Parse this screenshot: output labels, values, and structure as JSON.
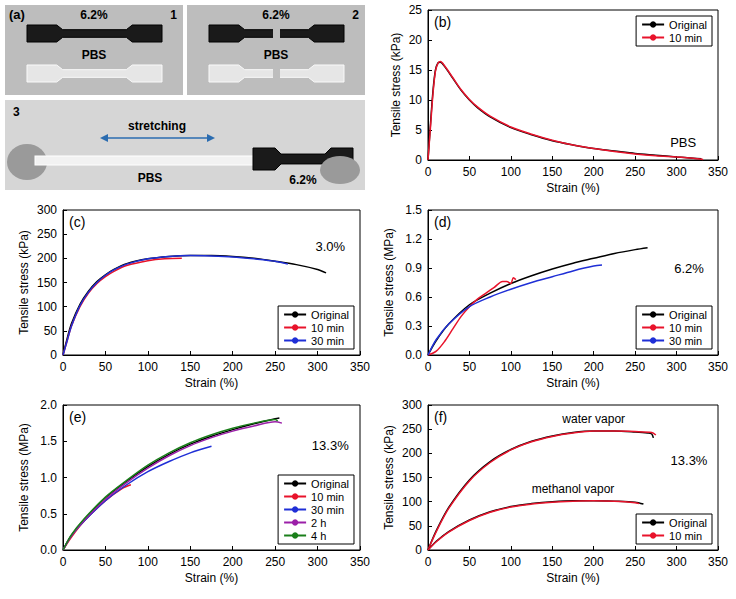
{
  "photo": {
    "label": "(a)",
    "frames": [
      {
        "number": "1",
        "sample": "6.2%",
        "reference": "PBS"
      },
      {
        "number": "2",
        "sample": "6.2%",
        "reference": "PBS"
      },
      {
        "number": "3",
        "sample": "6.2%",
        "reference": "PBS",
        "action": "stretching"
      }
    ]
  },
  "chart_data": [
    {
      "type": "line",
      "panel": "(b)",
      "annotation": "PBS",
      "x_label": "Strain (%)",
      "y_label": "Tensile stress (kPa)",
      "xlim": [
        0,
        350
      ],
      "xticks": [
        0,
        50,
        100,
        150,
        200,
        250,
        300,
        350
      ],
      "ylim": [
        0,
        25
      ],
      "yticks": [
        0,
        5,
        10,
        15,
        20,
        25
      ],
      "legend": "upper right",
      "series": [
        {
          "name": "Original",
          "color": "#000000",
          "x": [
            0,
            3,
            6,
            9,
            12,
            15,
            20,
            30,
            40,
            50,
            60,
            75,
            100,
            125,
            150,
            175,
            200,
            225,
            250,
            275,
            300,
            320,
            330
          ],
          "values": [
            0,
            6,
            11.5,
            15,
            16.2,
            16.3,
            15.6,
            13.6,
            11.6,
            10.0,
            8.7,
            7.2,
            5.4,
            4.2,
            3.2,
            2.5,
            1.9,
            1.5,
            1.1,
            0.8,
            0.5,
            0.3,
            0.2
          ]
        },
        {
          "name": "10 min",
          "color": "#e8132b",
          "x": [
            0,
            3,
            6,
            9,
            12,
            15,
            20,
            30,
            40,
            50,
            60,
            75,
            100,
            125,
            150,
            175,
            200,
            225,
            250,
            275,
            300,
            320,
            332
          ],
          "values": [
            0,
            5.5,
            11,
            14.8,
            16.1,
            16.4,
            15.7,
            13.7,
            11.7,
            10.1,
            8.8,
            7.3,
            5.5,
            4.3,
            3.3,
            2.5,
            1.9,
            1.4,
            1.0,
            0.7,
            0.5,
            0.3,
            0.1
          ]
        }
      ]
    },
    {
      "type": "line",
      "panel": "(c)",
      "annotation": "3.0%",
      "x_label": "Strain (%)",
      "y_label": "Tensile stress (kPa)",
      "xlim": [
        0,
        350
      ],
      "xticks": [
        0,
        50,
        100,
        150,
        200,
        250,
        300,
        350
      ],
      "ylim": [
        0,
        300
      ],
      "yticks": [
        0,
        50,
        100,
        150,
        200,
        250,
        300
      ],
      "legend": "lower right",
      "series": [
        {
          "name": "Original",
          "color": "#000000",
          "x": [
            0,
            5,
            10,
            20,
            30,
            40,
            50,
            60,
            75,
            100,
            125,
            150,
            175,
            200,
            225,
            250,
            275,
            300,
            310
          ],
          "values": [
            0,
            35,
            65,
            105,
            132,
            152,
            166,
            177,
            189,
            199,
            204,
            206,
            206,
            204,
            200,
            194,
            187,
            177,
            170
          ]
        },
        {
          "name": "10 min",
          "color": "#e8132b",
          "x": [
            0,
            5,
            10,
            20,
            30,
            40,
            50,
            60,
            75,
            100,
            120,
            140
          ],
          "values": [
            0,
            30,
            60,
            100,
            128,
            148,
            162,
            173,
            185,
            195,
            199,
            200
          ]
        },
        {
          "name": "30 min",
          "color": "#1f2fd6",
          "x": [
            0,
            5,
            10,
            20,
            30,
            40,
            50,
            60,
            75,
            100,
            125,
            150,
            175,
            200,
            225,
            250,
            265
          ],
          "values": [
            0,
            30,
            60,
            102,
            130,
            150,
            165,
            176,
            188,
            199,
            204,
            206,
            205,
            203,
            199,
            194,
            188
          ]
        }
      ]
    },
    {
      "type": "line",
      "panel": "(d)",
      "annotation": "6.2%",
      "x_label": "Strain (%)",
      "y_label": "Tensile stress (MPa)",
      "xlim": [
        0,
        350
      ],
      "xticks": [
        0,
        50,
        100,
        150,
        200,
        250,
        300,
        350
      ],
      "ylim": [
        0,
        1.5
      ],
      "yticks": [
        {
          "value": 0,
          "label": "0.0"
        },
        0.3,
        0.6,
        0.9,
        1.2,
        1.5
      ],
      "legend": "lower right",
      "series": [
        {
          "name": "Original",
          "color": "#000000",
          "x": [
            0,
            10,
            25,
            50,
            75,
            100,
            125,
            150,
            175,
            200,
            225,
            250,
            265
          ],
          "values": [
            0,
            0.15,
            0.32,
            0.52,
            0.64,
            0.74,
            0.82,
            0.89,
            0.95,
            1.0,
            1.05,
            1.09,
            1.11
          ]
        },
        {
          "name": "10 min",
          "color": "#e8132b",
          "x": [
            0,
            10,
            20,
            30,
            40,
            50,
            60,
            70,
            80,
            90,
            95,
            100,
            103,
            106
          ],
          "values": [
            0,
            0.04,
            0.14,
            0.27,
            0.4,
            0.5,
            0.58,
            0.64,
            0.7,
            0.76,
            0.76,
            0.74,
            0.8,
            0.78
          ]
        },
        {
          "name": "30 min",
          "color": "#1f2fd6",
          "x": [
            0,
            10,
            25,
            50,
            75,
            100,
            125,
            150,
            175,
            200,
            210
          ],
          "values": [
            0,
            0.16,
            0.32,
            0.5,
            0.6,
            0.68,
            0.75,
            0.81,
            0.87,
            0.92,
            0.93
          ]
        }
      ]
    },
    {
      "type": "line",
      "panel": "(e)",
      "annotation": "13.3%",
      "x_label": "Strain (%)",
      "y_label": "Tensile stress (MPa)",
      "xlim": [
        0,
        350
      ],
      "xticks": [
        0,
        50,
        100,
        150,
        200,
        250,
        300,
        350
      ],
      "ylim": [
        0,
        2
      ],
      "yticks": [
        {
          "value": 0,
          "label": "0.0"
        },
        0.5,
        {
          "value": 1,
          "label": "1.0"
        },
        1.5,
        {
          "value": 2,
          "label": "2.0"
        }
      ],
      "legend": "lower right",
      "series": [
        {
          "name": "Original",
          "color": "#000000",
          "x": [
            0,
            10,
            25,
            50,
            75,
            100,
            125,
            150,
            175,
            200,
            225,
            250,
            255
          ],
          "values": [
            0,
            0.2,
            0.42,
            0.72,
            0.95,
            1.15,
            1.32,
            1.46,
            1.57,
            1.66,
            1.74,
            1.81,
            1.82
          ]
        },
        {
          "name": "10 min",
          "color": "#e8132b",
          "x": [
            0,
            10,
            25,
            50,
            70,
            80
          ],
          "values": [
            0,
            0.18,
            0.4,
            0.68,
            0.85,
            0.9
          ]
        },
        {
          "name": "30 min",
          "color": "#1f2fd6",
          "x": [
            0,
            10,
            25,
            50,
            75,
            100,
            125,
            150,
            175
          ],
          "values": [
            0,
            0.2,
            0.4,
            0.68,
            0.9,
            1.08,
            1.22,
            1.34,
            1.43
          ]
        },
        {
          "name": "2 h",
          "color": "#9b1fa8",
          "x": [
            0,
            10,
            25,
            50,
            75,
            100,
            125,
            150,
            175,
            200,
            225,
            250,
            258
          ],
          "values": [
            0,
            0.2,
            0.41,
            0.7,
            0.93,
            1.13,
            1.3,
            1.44,
            1.55,
            1.64,
            1.71,
            1.77,
            1.75
          ]
        },
        {
          "name": "4 h",
          "color": "#1a7f1a",
          "x": [
            0,
            10,
            25,
            50,
            75,
            100,
            125,
            150,
            175,
            200,
            225,
            250,
            253
          ],
          "values": [
            0,
            0.21,
            0.43,
            0.73,
            0.96,
            1.17,
            1.34,
            1.48,
            1.59,
            1.68,
            1.75,
            1.8,
            1.78
          ]
        }
      ]
    },
    {
      "type": "line",
      "panel": "(f)",
      "annotation": "13.3%",
      "x_label": "Strain (%)",
      "y_label": "Tensile stress (kPa)",
      "xlim": [
        0,
        350
      ],
      "xticks": [
        0,
        50,
        100,
        150,
        200,
        250,
        300,
        350
      ],
      "ylim": [
        0,
        300
      ],
      "yticks": [
        0,
        50,
        100,
        150,
        200,
        250,
        300
      ],
      "legend": "lower right",
      "series": [
        {
          "name": "Original",
          "group": "water vapor",
          "color": "#000000",
          "x": [
            0,
            10,
            25,
            50,
            75,
            100,
            125,
            150,
            175,
            200,
            225,
            250,
            265,
            270,
            272
          ],
          "values": [
            0,
            40,
            88,
            145,
            183,
            208,
            225,
            236,
            243,
            246,
            246,
            244,
            242,
            240,
            232
          ]
        },
        {
          "name": "10 min",
          "group": "water vapor",
          "color": "#e8132b",
          "x": [
            0,
            10,
            25,
            50,
            75,
            100,
            125,
            150,
            175,
            200,
            225,
            250,
            270,
            275
          ],
          "values": [
            0,
            38,
            86,
            143,
            181,
            207,
            224,
            235,
            242,
            246,
            246,
            245,
            243,
            238
          ]
        },
        {
          "name": "Original",
          "group": "methanol vapor",
          "color": "#000000",
          "x": [
            0,
            10,
            25,
            50,
            75,
            100,
            125,
            150,
            175,
            200,
            225,
            250,
            260
          ],
          "values": [
            0,
            18,
            38,
            62,
            79,
            90,
            96,
            100,
            102,
            102,
            101,
            99,
            95
          ]
        },
        {
          "name": "10 min",
          "group": "methanol vapor",
          "color": "#e8132b",
          "x": [
            0,
            10,
            25,
            50,
            75,
            100,
            125,
            150,
            175,
            200,
            225,
            250,
            255
          ],
          "values": [
            0,
            17,
            37,
            61,
            78,
            89,
            95,
            99,
            101,
            102,
            101,
            98,
            96
          ]
        }
      ]
    }
  ]
}
